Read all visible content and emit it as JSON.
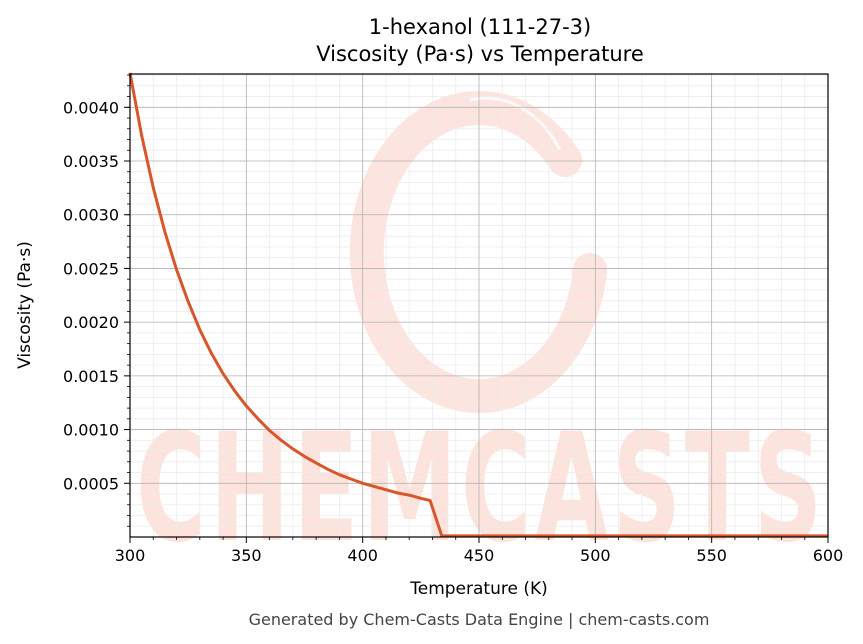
{
  "chart_data": {
    "type": "line",
    "title": "1-hexanol (111-27-3)",
    "subtitle": "Viscosity (Pa·s) vs Temperature",
    "xlabel": "Temperature (K)",
    "ylabel": "Viscosity (Pa·s)",
    "xlim": [
      300,
      600
    ],
    "ylim": [
      0,
      0.00431
    ],
    "x_ticks": [
      "300",
      "350",
      "400",
      "450",
      "500",
      "550",
      "600"
    ],
    "y_ticks": [
      "0.0005",
      "0.0010",
      "0.0015",
      "0.0020",
      "0.0025",
      "0.0030",
      "0.0035",
      "0.0040"
    ],
    "grid": true,
    "series_color": "#d9562a",
    "series": [
      {
        "x": [
          300,
          305,
          310,
          315,
          320,
          325,
          330,
          335,
          340,
          345,
          350,
          355,
          360,
          365,
          370,
          375,
          380,
          385,
          390,
          395,
          400,
          405,
          410,
          415,
          420,
          425,
          429,
          434,
          440,
          450,
          500,
          550,
          600
        ],
        "values": [
          0.00432,
          0.00374,
          0.00325,
          0.00284,
          0.00249,
          0.00219,
          0.00193,
          0.00171,
          0.00152,
          0.00136,
          0.00122,
          0.0011,
          0.00099,
          0.0009,
          0.00082,
          0.00075,
          0.00069,
          0.00063,
          0.00058,
          0.00054,
          0.0005,
          0.00047,
          0.00044,
          0.00041,
          0.00039,
          0.00036,
          0.00034,
          1e-05,
          1e-05,
          1e-05,
          1e-05,
          1e-05,
          1e-05
        ]
      }
    ]
  },
  "watermark": {
    "text": "CHEMCASTS",
    "color": "#fde3dc"
  },
  "footer": "Generated by Chem-Casts Data Engine | chem-casts.com"
}
